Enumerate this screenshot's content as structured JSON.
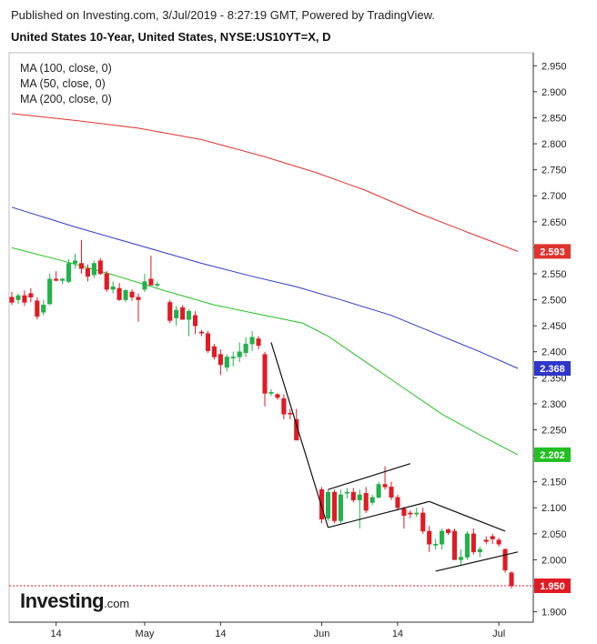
{
  "header": {
    "published": "Published on Investing.com, 3/Jul/2019 - 8:27:19 GMT, Powered by TradingView.",
    "title": "United States 10-Year, United States, NYSE:US10YT=X, D"
  },
  "legend": [
    "MA (100, close, 0)",
    "MA (50, close, 0)",
    "MA (200, close, 0)"
  ],
  "logo": {
    "text": "Investing",
    "suffix": ".com"
  },
  "chart_data": {
    "type": "candlestick",
    "ylim": [
      1.88,
      2.975
    ],
    "yticks": [
      "2.950",
      "2.900",
      "2.850",
      "2.800",
      "2.750",
      "2.700",
      "2.650",
      "2.600",
      "2.550",
      "2.500",
      "2.450",
      "2.400",
      "2.350",
      "2.300",
      "2.250",
      "2.200",
      "2.150",
      "2.100",
      "2.050",
      "2.000",
      "1.950",
      "1.900"
    ],
    "x_labels": [
      {
        "label": "14",
        "index": 7
      },
      {
        "label": "May",
        "index": 21
      },
      {
        "label": "14",
        "index": 33
      },
      {
        "label": "Jun",
        "index": 49
      },
      {
        "label": "14",
        "index": 61
      },
      {
        "label": "Jul",
        "index": 77
      }
    ],
    "candles": [
      {
        "o": 2.505,
        "h": 2.515,
        "l": 2.49,
        "c": 2.495
      },
      {
        "o": 2.5,
        "h": 2.512,
        "l": 2.492,
        "c": 2.508
      },
      {
        "o": 2.508,
        "h": 2.518,
        "l": 2.488,
        "c": 2.495
      },
      {
        "o": 2.512,
        "h": 2.522,
        "l": 2.495,
        "c": 2.505
      },
      {
        "o": 2.498,
        "h": 2.505,
        "l": 2.462,
        "c": 2.468
      },
      {
        "o": 2.476,
        "h": 2.5,
        "l": 2.47,
        "c": 2.49
      },
      {
        "o": 2.492,
        "h": 2.55,
        "l": 2.49,
        "c": 2.54
      },
      {
        "o": 2.54,
        "h": 2.555,
        "l": 2.535,
        "c": 2.537
      },
      {
        "o": 2.537,
        "h": 2.542,
        "l": 2.53,
        "c": 2.54
      },
      {
        "o": 2.535,
        "h": 2.578,
        "l": 2.532,
        "c": 2.57
      },
      {
        "o": 2.57,
        "h": 2.588,
        "l": 2.56,
        "c": 2.575
      },
      {
        "o": 2.57,
        "h": 2.615,
        "l": 2.55,
        "c": 2.56
      },
      {
        "o": 2.56,
        "h": 2.568,
        "l": 2.535,
        "c": 2.545
      },
      {
        "o": 2.548,
        "h": 2.575,
        "l": 2.542,
        "c": 2.57
      },
      {
        "o": 2.575,
        "h": 2.58,
        "l": 2.548,
        "c": 2.55
      },
      {
        "o": 2.55,
        "h": 2.555,
        "l": 2.515,
        "c": 2.52
      },
      {
        "o": 2.52,
        "h": 2.535,
        "l": 2.512,
        "c": 2.525
      },
      {
        "o": 2.522,
        "h": 2.532,
        "l": 2.498,
        "c": 2.5
      },
      {
        "o": 2.5,
        "h": 2.52,
        "l": 2.495,
        "c": 2.518
      },
      {
        "o": 2.515,
        "h": 2.52,
        "l": 2.498,
        "c": 2.505
      },
      {
        "o": 2.505,
        "h": 2.512,
        "l": 2.458,
        "c": 2.5
      },
      {
        "o": 2.52,
        "h": 2.55,
        "l": 2.515,
        "c": 2.535
      },
      {
        "o": 2.54,
        "h": 2.585,
        "l": 2.528,
        "c": 2.528
      },
      {
        "o": 2.528,
        "h": 2.535,
        "l": 2.524,
        "c": 2.53
      },
      {
        "o": 2.495,
        "h": 2.5,
        "l": 2.455,
        "c": 2.46
      },
      {
        "o": 2.465,
        "h": 2.488,
        "l": 2.45,
        "c": 2.48
      },
      {
        "o": 2.485,
        "h": 2.49,
        "l": 2.462,
        "c": 2.462
      },
      {
        "o": 2.462,
        "h": 2.482,
        "l": 2.43,
        "c": 2.478
      },
      {
        "o": 2.47,
        "h": 2.478,
        "l": 2.434,
        "c": 2.45
      },
      {
        "o": 2.438,
        "h": 2.442,
        "l": 2.43,
        "c": 2.436
      },
      {
        "o": 2.435,
        "h": 2.44,
        "l": 2.398,
        "c": 2.402
      },
      {
        "o": 2.41,
        "h": 2.415,
        "l": 2.385,
        "c": 2.39
      },
      {
        "o": 2.395,
        "h": 2.405,
        "l": 2.355,
        "c": 2.375
      },
      {
        "o": 2.37,
        "h": 2.395,
        "l": 2.362,
        "c": 2.39
      },
      {
        "o": 2.388,
        "h": 2.4,
        "l": 2.372,
        "c": 2.39
      },
      {
        "o": 2.39,
        "h": 2.418,
        "l": 2.38,
        "c": 2.4
      },
      {
        "o": 2.398,
        "h": 2.428,
        "l": 2.39,
        "c": 2.415
      },
      {
        "o": 2.415,
        "h": 2.44,
        "l": 2.402,
        "c": 2.428
      },
      {
        "o": 2.425,
        "h": 2.43,
        "l": 2.405,
        "c": 2.412
      },
      {
        "o": 2.395,
        "h": 2.4,
        "l": 2.295,
        "c": 2.32
      },
      {
        "o": 2.32,
        "h": 2.328,
        "l": 2.315,
        "c": 2.322
      },
      {
        "o": 2.318,
        "h": 2.32,
        "l": 2.308,
        "c": 2.312
      },
      {
        "o": 2.31,
        "h": 2.318,
        "l": 2.27,
        "c": 2.28
      },
      {
        "o": 2.282,
        "h": 2.29,
        "l": 2.27,
        "c": 2.28
      },
      {
        "o": 2.27,
        "h": 2.29,
        "l": 2.23,
        "c": 2.23
      },
      {
        "o": 2.135,
        "h": 2.14,
        "l": 2.07,
        "c": 2.078
      },
      {
        "o": 2.08,
        "h": 2.135,
        "l": 2.075,
        "c": 2.13
      },
      {
        "o": 2.13,
        "h": 2.135,
        "l": 2.07,
        "c": 2.075
      },
      {
        "o": 2.075,
        "h": 2.135,
        "l": 2.07,
        "c": 2.125
      },
      {
        "o": 2.128,
        "h": 2.138,
        "l": 2.118,
        "c": 2.13
      },
      {
        "o": 2.13,
        "h": 2.138,
        "l": 2.11,
        "c": 2.115
      },
      {
        "o": 2.115,
        "h": 2.135,
        "l": 2.06,
        "c": 2.125
      },
      {
        "o": 2.128,
        "h": 2.14,
        "l": 2.09,
        "c": 2.095
      },
      {
        "o": 2.11,
        "h": 2.125,
        "l": 2.105,
        "c": 2.12
      },
      {
        "o": 2.12,
        "h": 2.15,
        "l": 2.118,
        "c": 2.145
      },
      {
        "o": 2.145,
        "h": 2.18,
        "l": 2.135,
        "c": 2.14
      },
      {
        "o": 2.14,
        "h": 2.15,
        "l": 2.115,
        "c": 2.12
      },
      {
        "o": 2.12,
        "h": 2.125,
        "l": 2.095,
        "c": 2.1
      },
      {
        "o": 2.098,
        "h": 2.102,
        "l": 2.06,
        "c": 2.085
      },
      {
        "o": 2.09,
        "h": 2.095,
        "l": 2.08,
        "c": 2.088
      },
      {
        "o": 2.088,
        "h": 2.1,
        "l": 2.082,
        "c": 2.09
      },
      {
        "o": 2.09,
        "h": 2.1,
        "l": 2.05,
        "c": 2.055
      },
      {
        "o": 2.055,
        "h": 2.065,
        "l": 2.015,
        "c": 2.03
      },
      {
        "o": 2.03,
        "h": 2.04,
        "l": 2.02,
        "c": 2.03
      },
      {
        "o": 2.03,
        "h": 2.06,
        "l": 2.02,
        "c": 2.055
      },
      {
        "o": 2.058,
        "h": 2.06,
        "l": 2.048,
        "c": 2.052
      },
      {
        "o": 2.055,
        "h": 2.06,
        "l": 2.0,
        "c": 2.0
      },
      {
        "o": 2.0,
        "h": 2.02,
        "l": 1.99,
        "c": 2.005
      },
      {
        "o": 2.005,
        "h": 2.055,
        "l": 2.0,
        "c": 2.05
      },
      {
        "o": 2.05,
        "h": 2.06,
        "l": 2.01,
        "c": 2.015
      },
      {
        "o": 2.015,
        "h": 2.025,
        "l": 2.005,
        "c": 2.02
      },
      {
        "o": 2.038,
        "h": 2.045,
        "l": 2.03,
        "c": 2.035
      },
      {
        "o": 2.045,
        "h": 2.05,
        "l": 2.03,
        "c": 2.04
      },
      {
        "o": 2.038,
        "h": 2.042,
        "l": 2.025,
        "c": 2.03
      },
      {
        "o": 2.02,
        "h": 2.022,
        "l": 1.975,
        "c": 1.98
      },
      {
        "o": 1.975,
        "h": 1.978,
        "l": 1.945,
        "c": 1.95
      }
    ],
    "candle_index_map": [
      0,
      1,
      2,
      3,
      4,
      5,
      6,
      7,
      8,
      9,
      10,
      11,
      12,
      13,
      14,
      15,
      16,
      17,
      18,
      19,
      20,
      21,
      22,
      23,
      25,
      26,
      27,
      28,
      29,
      30,
      31,
      32,
      33,
      34,
      35,
      36,
      37,
      38,
      39,
      40,
      41,
      42,
      43,
      44,
      45,
      49,
      50,
      51,
      52,
      53,
      54,
      55,
      56,
      57,
      58,
      59,
      60,
      61,
      62,
      63,
      64,
      65,
      66,
      67,
      68,
      69,
      70,
      71,
      72,
      73,
      74,
      75,
      76,
      77,
      78,
      79
    ],
    "ma_series": [
      {
        "name": "MA (100, close, 0)",
        "color": "#2f36c8",
        "label": "2.368",
        "points": [
          [
            0,
            2.678
          ],
          [
            10,
            2.64
          ],
          [
            20,
            2.605
          ],
          [
            30,
            2.57
          ],
          [
            38,
            2.545
          ],
          [
            45,
            2.525
          ],
          [
            52,
            2.5
          ],
          [
            60,
            2.47
          ],
          [
            68,
            2.43
          ],
          [
            74,
            2.4
          ],
          [
            80,
            2.368
          ]
        ]
      },
      {
        "name": "MA (50, close, 0)",
        "color": "#22c022",
        "label": "2.202",
        "points": [
          [
            0,
            2.6
          ],
          [
            8,
            2.575
          ],
          [
            16,
            2.548
          ],
          [
            24,
            2.518
          ],
          [
            32,
            2.49
          ],
          [
            40,
            2.47
          ],
          [
            46,
            2.455
          ],
          [
            50,
            2.43
          ],
          [
            56,
            2.38
          ],
          [
            62,
            2.33
          ],
          [
            68,
            2.28
          ],
          [
            74,
            2.24
          ],
          [
            80,
            2.202
          ]
        ]
      },
      {
        "name": "MA (200, close, 0)",
        "color": "#e0322c",
        "label": "2.593",
        "points": [
          [
            0,
            2.858
          ],
          [
            10,
            2.845
          ],
          [
            20,
            2.83
          ],
          [
            30,
            2.808
          ],
          [
            40,
            2.775
          ],
          [
            48,
            2.745
          ],
          [
            56,
            2.71
          ],
          [
            64,
            2.668
          ],
          [
            72,
            2.63
          ],
          [
            80,
            2.593
          ]
        ]
      }
    ],
    "trendlines": [
      {
        "from": [
          41,
          2.418
        ],
        "to": [
          50,
          2.062
        ]
      },
      {
        "from": [
          50,
          2.062
        ],
        "to": [
          66,
          2.112
        ]
      },
      {
        "from": [
          50,
          2.135
        ],
        "to": [
          63,
          2.185
        ]
      },
      {
        "from": [
          66,
          2.112
        ],
        "to": [
          78,
          2.055
        ]
      },
      {
        "from": [
          67,
          1.978
        ],
        "to": [
          80,
          2.015
        ]
      }
    ],
    "last_price": {
      "value": 1.95,
      "label": "1.950",
      "color": "#e01b24"
    }
  }
}
